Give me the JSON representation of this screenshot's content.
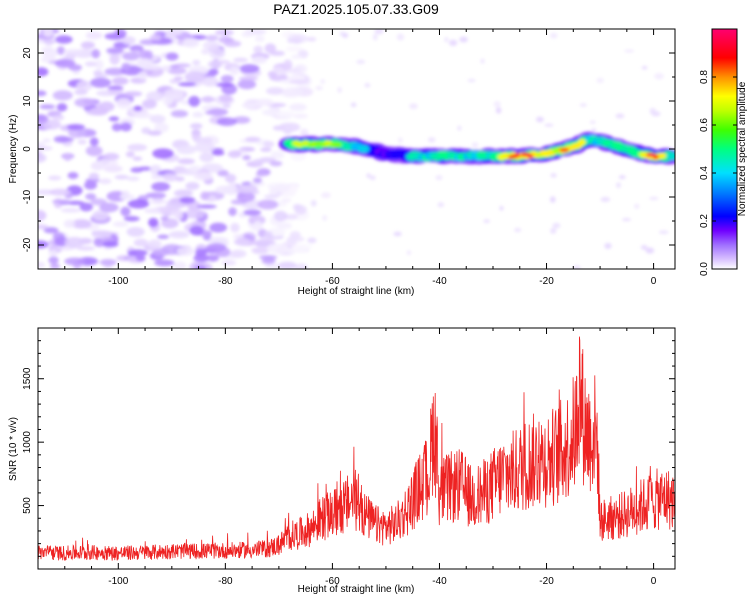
{
  "title": "PAZ1.2025.105.07.33.G09",
  "chart_data": [
    {
      "type": "heatmap",
      "xlabel": "Height of straight line (km)",
      "ylabel": "Frequency (Hz)",
      "xlim": [
        -115,
        4
      ],
      "ylim": [
        -25,
        25
      ],
      "x_ticks": [
        -100,
        -80,
        -60,
        -40,
        -20,
        0
      ],
      "y_ticks": [
        -20,
        -10,
        0,
        10,
        20
      ],
      "colorbar": {
        "label": "Normalized spectral amplitude",
        "range": [
          0,
          1
        ],
        "ticks": [
          0.0,
          0.2,
          0.4,
          0.6,
          0.8
        ],
        "colors": [
          "#ffffff",
          "#d9c2ff",
          "#a070ff",
          "#7000ff",
          "#0000ff",
          "#00c8ff",
          "#00ff80",
          "#80ff00",
          "#ffff00",
          "#ff8000",
          "#ff0000",
          "#ff0080"
        ]
      },
      "ridge": {
        "x": [
          -68,
          -60,
          -55,
          -50,
          -45,
          -40,
          -35,
          -30,
          -25,
          -20,
          -15,
          -12,
          -8,
          -4,
          0,
          4
        ],
        "y": [
          1,
          1,
          0.5,
          -1,
          -1.5,
          -1.5,
          -1.5,
          -1.5,
          -1.5,
          -1,
          0.5,
          2,
          1,
          -0.5,
          -1.5,
          -1.5
        ],
        "amplitude": [
          0.6,
          0.65,
          0.45,
          0.3,
          0.45,
          0.55,
          0.5,
          0.55,
          0.9,
          0.7,
          0.85,
          0.5,
          0.55,
          0.5,
          0.9,
          0.4
        ]
      },
      "noise_region_x": [
        -115,
        -65
      ]
    },
    {
      "type": "line",
      "xlabel": "Height of straight line (km)",
      "ylabel": "SNR (10 * v/v)",
      "xlim": [
        -115,
        4
      ],
      "ylim": [
        0,
        1900
      ],
      "x_ticks": [
        -100,
        -80,
        -60,
        -40,
        -20,
        0
      ],
      "y_ticks": [
        500,
        1000,
        1500
      ],
      "series": [
        {
          "color": "#ee2222",
          "x": [
            -115,
            -110,
            -105,
            -100,
            -95,
            -90,
            -85,
            -80,
            -75,
            -72,
            -70,
            -68,
            -66,
            -64,
            -62,
            -60,
            -58,
            -56,
            -54,
            -52,
            -50,
            -48,
            -46,
            -44,
            -42,
            -41,
            -40,
            -38,
            -36,
            -34,
            -32,
            -30,
            -28,
            -26,
            -24,
            -22,
            -20,
            -18,
            -16,
            -14.5,
            -14,
            -13,
            -12,
            -11,
            -10.5,
            -10,
            -8,
            -6,
            -4,
            -2,
            0,
            2,
            4
          ],
          "values": [
            130,
            125,
            130,
            125,
            130,
            140,
            140,
            145,
            150,
            160,
            190,
            260,
            280,
            320,
            400,
            430,
            480,
            560,
            430,
            350,
            330,
            360,
            470,
            620,
            750,
            1150,
            600,
            640,
            660,
            560,
            590,
            660,
            740,
            760,
            820,
            860,
            870,
            900,
            980,
            1100,
            1500,
            1150,
            1050,
            1080,
            1000,
            380,
            400,
            420,
            460,
            500,
            540,
            560,
            540
          ]
        }
      ]
    }
  ]
}
